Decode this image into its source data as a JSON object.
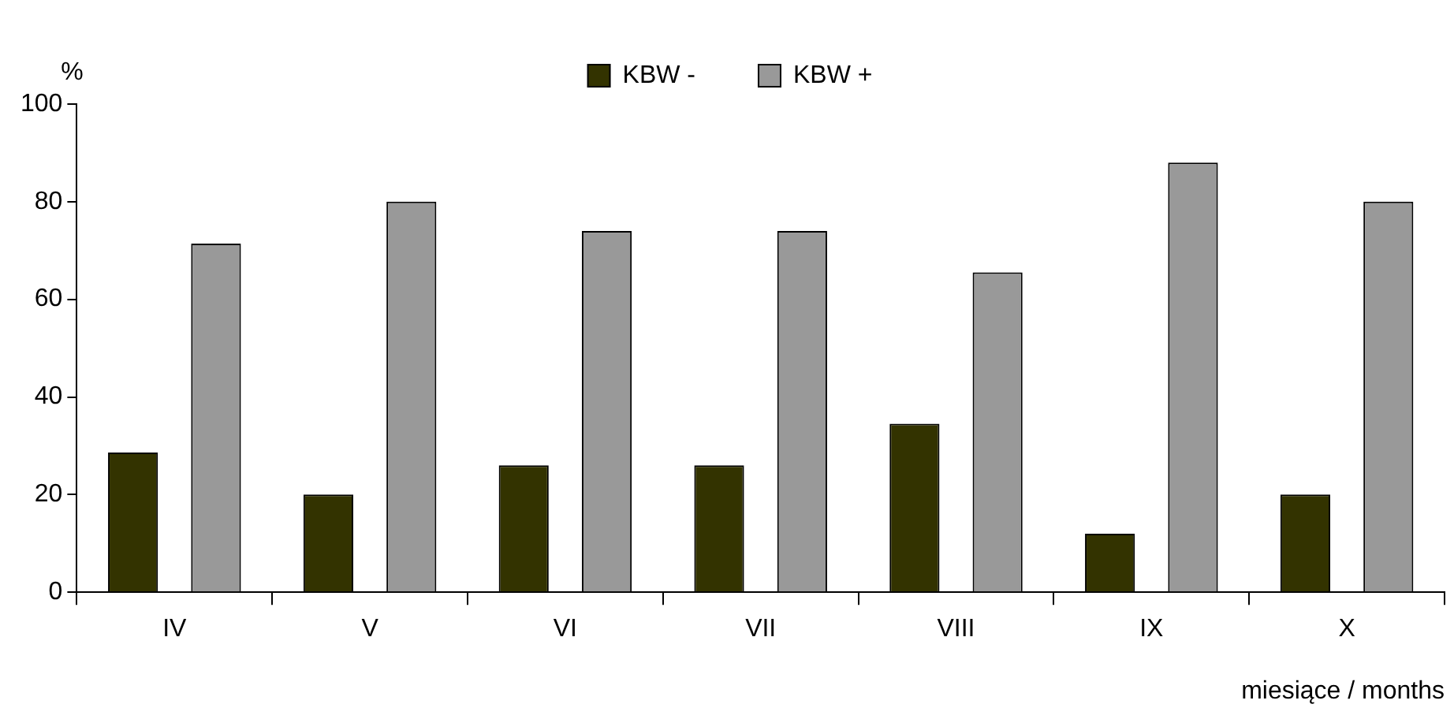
{
  "chart_data": {
    "type": "bar",
    "ylabel": "%",
    "xlabel": "miesiące / months",
    "categories": [
      "IV",
      "V",
      "VI",
      "VII",
      "VIII",
      "IX",
      "X"
    ],
    "series": [
      {
        "name": "KBW -",
        "color": "#333300",
        "values": [
          28.6,
          20,
          26,
          26,
          34.5,
          12,
          20
        ]
      },
      {
        "name": "KBW +",
        "color": "#999999",
        "values": [
          71.4,
          80,
          74,
          74,
          65.5,
          88,
          80
        ]
      }
    ],
    "ylim": [
      0,
      100
    ],
    "yticks": [
      0,
      20,
      40,
      60,
      80,
      100
    ],
    "grid": false,
    "legend": "top"
  }
}
